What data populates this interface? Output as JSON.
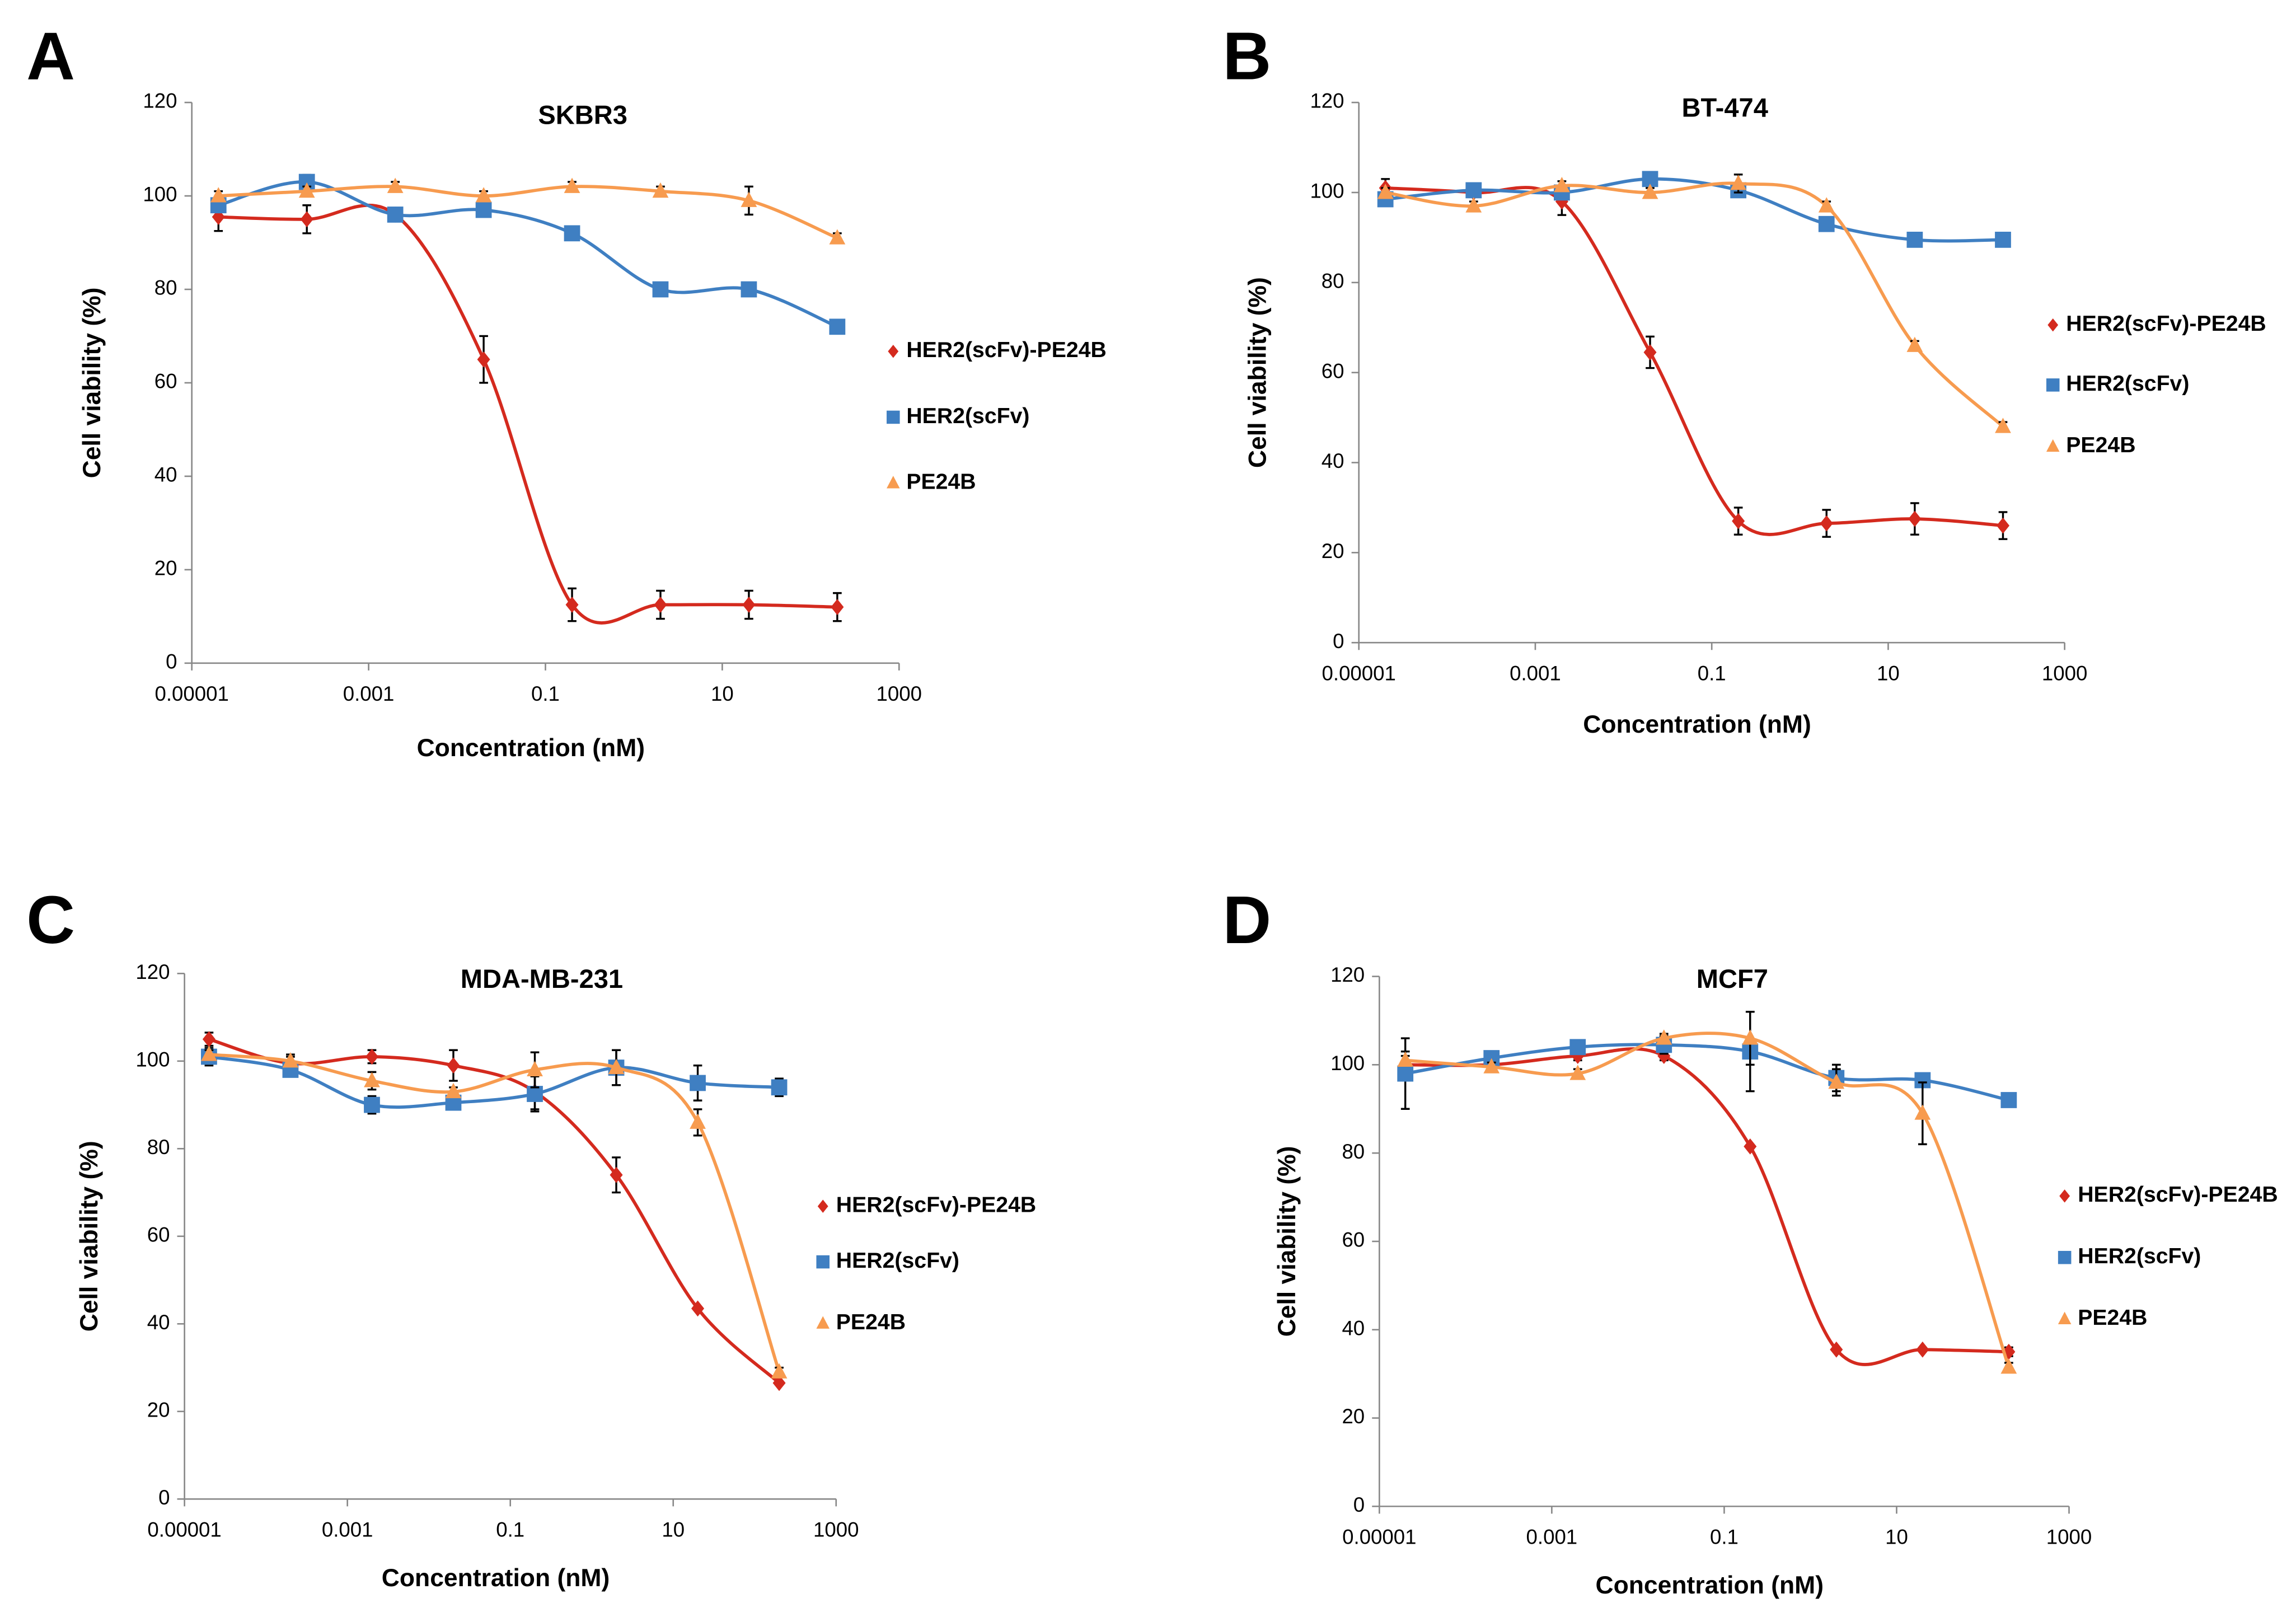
{
  "chart_data": [
    {
      "type": "line",
      "panel": "A",
      "title": "SKBR3",
      "x_label": "Concentration (nM)",
      "y_label": "Cell viability (%)",
      "x": [
        2e-05,
        0.0002,
        0.002,
        0.02,
        0.2,
        2,
        20,
        200
      ],
      "log_x": true,
      "xlim": [
        1e-05,
        1000
      ],
      "xticks": [
        1e-05,
        0.001,
        0.1,
        10,
        1000
      ],
      "ylim": [
        0,
        120
      ],
      "yticks": [
        0,
        20,
        40,
        60,
        80,
        100,
        120
      ],
      "series": [
        {
          "name": "HER2(scFv)-PE24B",
          "color": "#d42a1e",
          "marker": "diamond",
          "values": [
            95.5,
            95,
            96,
            65,
            12.5,
            12.5,
            12.5,
            12
          ],
          "errors": [
            3,
            3,
            0,
            5,
            3.5,
            3,
            3,
            3
          ]
        },
        {
          "name": "HER2(scFv)",
          "color": "#3f7fc2",
          "marker": "square",
          "values": [
            98,
            103,
            96,
            97,
            92,
            80,
            80,
            72
          ],
          "errors": [
            1,
            1.5,
            0,
            0,
            0,
            0,
            0,
            0
          ]
        },
        {
          "name": "PE24B",
          "color": "#f79b4f",
          "marker": "triangle",
          "values": [
            100,
            101,
            102,
            100,
            102,
            101,
            99,
            91
          ],
          "errors": [
            1,
            1,
            1,
            1,
            1,
            1,
            3,
            1
          ]
        }
      ]
    },
    {
      "type": "line",
      "panel": "B",
      "title": "BT-474",
      "x_label": "Concentration (nM)",
      "y_label": "Cell viability (%)",
      "x": [
        2e-05,
        0.0002,
        0.002,
        0.02,
        0.2,
        2,
        20,
        200
      ],
      "log_x": true,
      "xlim": [
        1e-05,
        1000
      ],
      "xticks": [
        1e-05,
        0.001,
        0.1,
        10,
        1000
      ],
      "ylim": [
        0,
        120
      ],
      "yticks": [
        0,
        20,
        40,
        60,
        80,
        100,
        120
      ],
      "series": [
        {
          "name": "HER2(scFv)-PE24B",
          "color": "#d42a1e",
          "marker": "diamond",
          "values": [
            101,
            100,
            98,
            64.5,
            27,
            26.5,
            27.5,
            26
          ],
          "errors": [
            2,
            0,
            3,
            3.5,
            3,
            3,
            3.5,
            3
          ]
        },
        {
          "name": "HER2(scFv)",
          "color": "#3f7fc2",
          "marker": "square",
          "values": [
            98.5,
            100.5,
            100,
            103,
            100.5,
            93,
            89.5,
            89.5
          ],
          "errors": [
            0,
            0,
            0,
            0,
            0,
            0,
            0,
            0
          ]
        },
        {
          "name": "PE24B",
          "color": "#f79b4f",
          "marker": "triangle",
          "values": [
            100,
            97,
            101.5,
            100,
            102,
            97,
            66,
            48
          ],
          "errors": [
            1,
            1,
            1,
            1,
            2,
            1,
            1,
            1
          ]
        }
      ]
    },
    {
      "type": "line",
      "panel": "C",
      "title": "MDA-MB-231",
      "x_label": "Concentration (nM)",
      "y_label": "Cell viability (%)",
      "x": [
        2e-05,
        0.0002,
        0.002,
        0.02,
        0.2,
        2,
        20,
        200
      ],
      "log_x": true,
      "xlim": [
        1e-05,
        1000
      ],
      "xticks": [
        1e-05,
        0.001,
        0.1,
        10,
        1000
      ],
      "ylim": [
        0,
        120
      ],
      "yticks": [
        0,
        20,
        40,
        60,
        80,
        100,
        120
      ],
      "series": [
        {
          "name": "HER2(scFv)-PE24B",
          "color": "#d42a1e",
          "marker": "diamond",
          "values": [
            105,
            99.5,
            101,
            99,
            93,
            74,
            43.5,
            26.5
          ],
          "errors": [
            1.5,
            2,
            1.5,
            3.5,
            4,
            4,
            0,
            0
          ]
        },
        {
          "name": "HER2(scFv)",
          "color": "#3f7fc2",
          "marker": "square",
          "values": [
            101,
            98,
            90,
            90.5,
            92.5,
            98.5,
            95,
            94
          ],
          "errors": [
            2,
            0,
            2,
            0,
            4,
            4,
            4,
            2
          ]
        },
        {
          "name": "PE24B",
          "color": "#f79b4f",
          "marker": "triangle",
          "values": [
            101.5,
            100,
            95.5,
            93,
            98,
            98.5,
            86,
            29
          ],
          "errors": [
            1,
            1,
            2,
            1,
            4,
            4,
            3,
            1
          ]
        }
      ]
    },
    {
      "type": "line",
      "panel": "D",
      "title": "MCF7",
      "x_label": "Concentration (nM)",
      "y_label": "Cell viability (%)",
      "x": [
        2e-05,
        0.0002,
        0.002,
        0.02,
        0.2,
        2,
        20,
        200
      ],
      "log_x": true,
      "xlim": [
        1e-05,
        1000
      ],
      "xticks": [
        1e-05,
        0.001,
        0.1,
        10,
        1000
      ],
      "ylim": [
        0,
        120
      ],
      "yticks": [
        0,
        20,
        40,
        60,
        80,
        100,
        120
      ],
      "series": [
        {
          "name": "HER2(scFv)-PE24B",
          "color": "#d42a1e",
          "marker": "diamond",
          "values": [
            100,
            100,
            102,
            102,
            81.5,
            35.5,
            35.5,
            35
          ],
          "errors": [
            3,
            1,
            1,
            1,
            0,
            0,
            0,
            1
          ]
        },
        {
          "name": "HER2(scFv)",
          "color": "#3f7fc2",
          "marker": "square",
          "values": [
            98,
            101.5,
            104,
            104.5,
            103,
            97,
            96.5,
            92
          ],
          "errors": [
            8,
            1,
            0,
            2,
            9,
            3,
            0,
            0
          ]
        },
        {
          "name": "PE24B",
          "color": "#f79b4f",
          "marker": "triangle",
          "values": [
            101,
            99.5,
            98,
            106,
            106,
            96,
            89,
            31.5
          ],
          "errors": [
            1,
            1,
            1,
            1,
            6,
            3,
            7,
            1
          ]
        }
      ]
    }
  ]
}
